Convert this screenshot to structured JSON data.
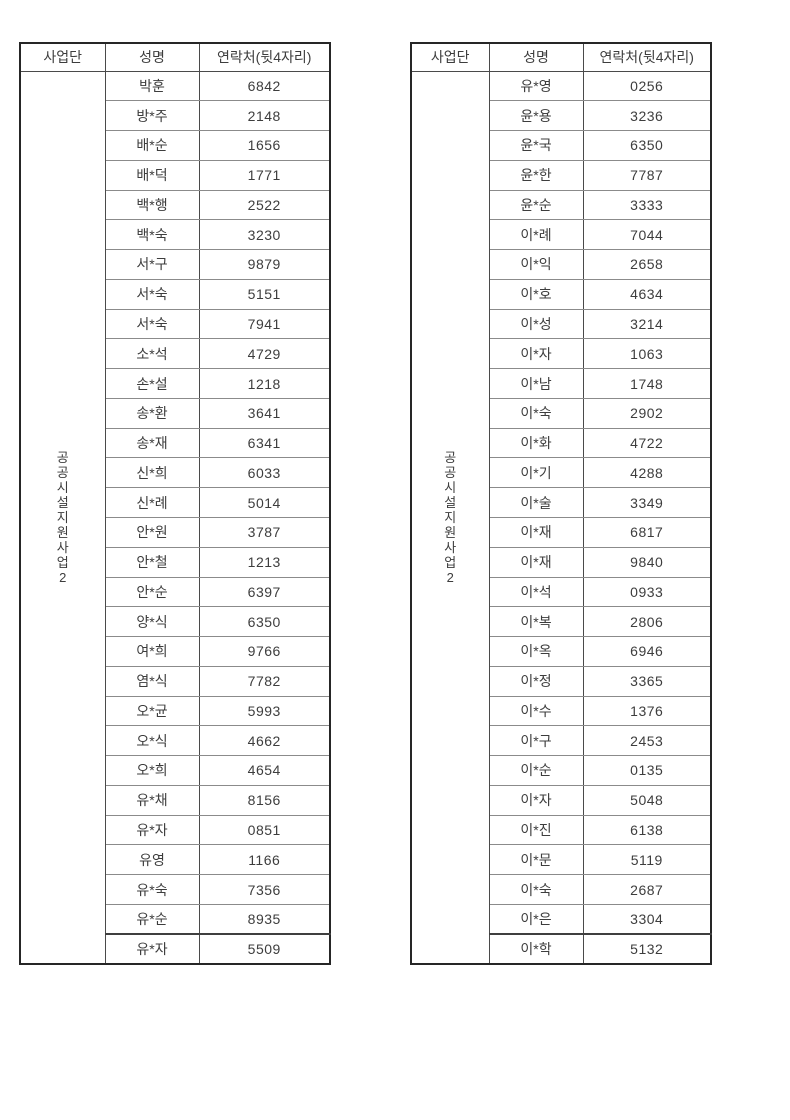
{
  "page": {
    "background_color": "#ffffff",
    "text_color": "#3d3d3d",
    "border_outer_color": "#262626",
    "border_inner_color": "#8b8b8b"
  },
  "tables": [
    {
      "name": "roster-table-left",
      "headers": [
        "사업단",
        "성명",
        "연락처(뒷4자리)"
      ],
      "group_label": "공공시설지원사업2",
      "rows": [
        {
          "name": "박훈",
          "phone": "6842"
        },
        {
          "name": "방*주",
          "phone": "2148"
        },
        {
          "name": "배*순",
          "phone": "1656"
        },
        {
          "name": "배*덕",
          "phone": "1771"
        },
        {
          "name": "백*행",
          "phone": "2522"
        },
        {
          "name": "백*숙",
          "phone": "3230"
        },
        {
          "name": "서*구",
          "phone": "9879"
        },
        {
          "name": "서*숙",
          "phone": "5151"
        },
        {
          "name": "서*숙",
          "phone": "7941"
        },
        {
          "name": "소*석",
          "phone": "4729"
        },
        {
          "name": "손*설",
          "phone": "1218"
        },
        {
          "name": "송*환",
          "phone": "3641"
        },
        {
          "name": "송*재",
          "phone": "6341"
        },
        {
          "name": "신*희",
          "phone": "6033"
        },
        {
          "name": "신*례",
          "phone": "5014"
        },
        {
          "name": "안*원",
          "phone": "3787"
        },
        {
          "name": "안*철",
          "phone": "1213"
        },
        {
          "name": "안*순",
          "phone": "6397"
        },
        {
          "name": "양*식",
          "phone": "6350"
        },
        {
          "name": "여*희",
          "phone": "9766"
        },
        {
          "name": "염*식",
          "phone": "7782"
        },
        {
          "name": "오*균",
          "phone": "5993"
        },
        {
          "name": "오*식",
          "phone": "4662"
        },
        {
          "name": "오*희",
          "phone": "4654"
        },
        {
          "name": "유*채",
          "phone": "8156"
        },
        {
          "name": "유*자",
          "phone": "0851"
        },
        {
          "name": "유영",
          "phone": "1166"
        },
        {
          "name": "유*숙",
          "phone": "7356"
        },
        {
          "name": "유*순",
          "phone": "8935"
        },
        {
          "name": "유*자",
          "phone": "5509"
        }
      ]
    },
    {
      "name": "roster-table-right",
      "headers": [
        "사업단",
        "성명",
        "연락처(뒷4자리)"
      ],
      "group_label": "공공시설지원사업2",
      "rows": [
        {
          "name": "유*영",
          "phone": "0256"
        },
        {
          "name": "윤*용",
          "phone": "3236"
        },
        {
          "name": "윤*국",
          "phone": "6350"
        },
        {
          "name": "윤*한",
          "phone": "7787"
        },
        {
          "name": "윤*순",
          "phone": "3333"
        },
        {
          "name": "이*례",
          "phone": "7044"
        },
        {
          "name": "이*익",
          "phone": "2658"
        },
        {
          "name": "이*호",
          "phone": "4634"
        },
        {
          "name": "이*성",
          "phone": "3214"
        },
        {
          "name": "이*자",
          "phone": "1063"
        },
        {
          "name": "이*남",
          "phone": "1748"
        },
        {
          "name": "이*숙",
          "phone": "2902"
        },
        {
          "name": "이*화",
          "phone": "4722"
        },
        {
          "name": "이*기",
          "phone": "4288"
        },
        {
          "name": "이*술",
          "phone": "3349"
        },
        {
          "name": "이*재",
          "phone": "6817"
        },
        {
          "name": "이*재",
          "phone": "9840"
        },
        {
          "name": "이*석",
          "phone": "0933"
        },
        {
          "name": "이*복",
          "phone": "2806"
        },
        {
          "name": "이*옥",
          "phone": "6946"
        },
        {
          "name": "이*정",
          "phone": "3365"
        },
        {
          "name": "이*수",
          "phone": "1376"
        },
        {
          "name": "이*구",
          "phone": "2453"
        },
        {
          "name": "이*순",
          "phone": "0135"
        },
        {
          "name": "이*자",
          "phone": "5048"
        },
        {
          "name": "이*진",
          "phone": "6138"
        },
        {
          "name": "이*문",
          "phone": "5119"
        },
        {
          "name": "이*숙",
          "phone": "2687"
        },
        {
          "name": "이*은",
          "phone": "3304"
        },
        {
          "name": "이*학",
          "phone": "5132"
        }
      ]
    }
  ]
}
